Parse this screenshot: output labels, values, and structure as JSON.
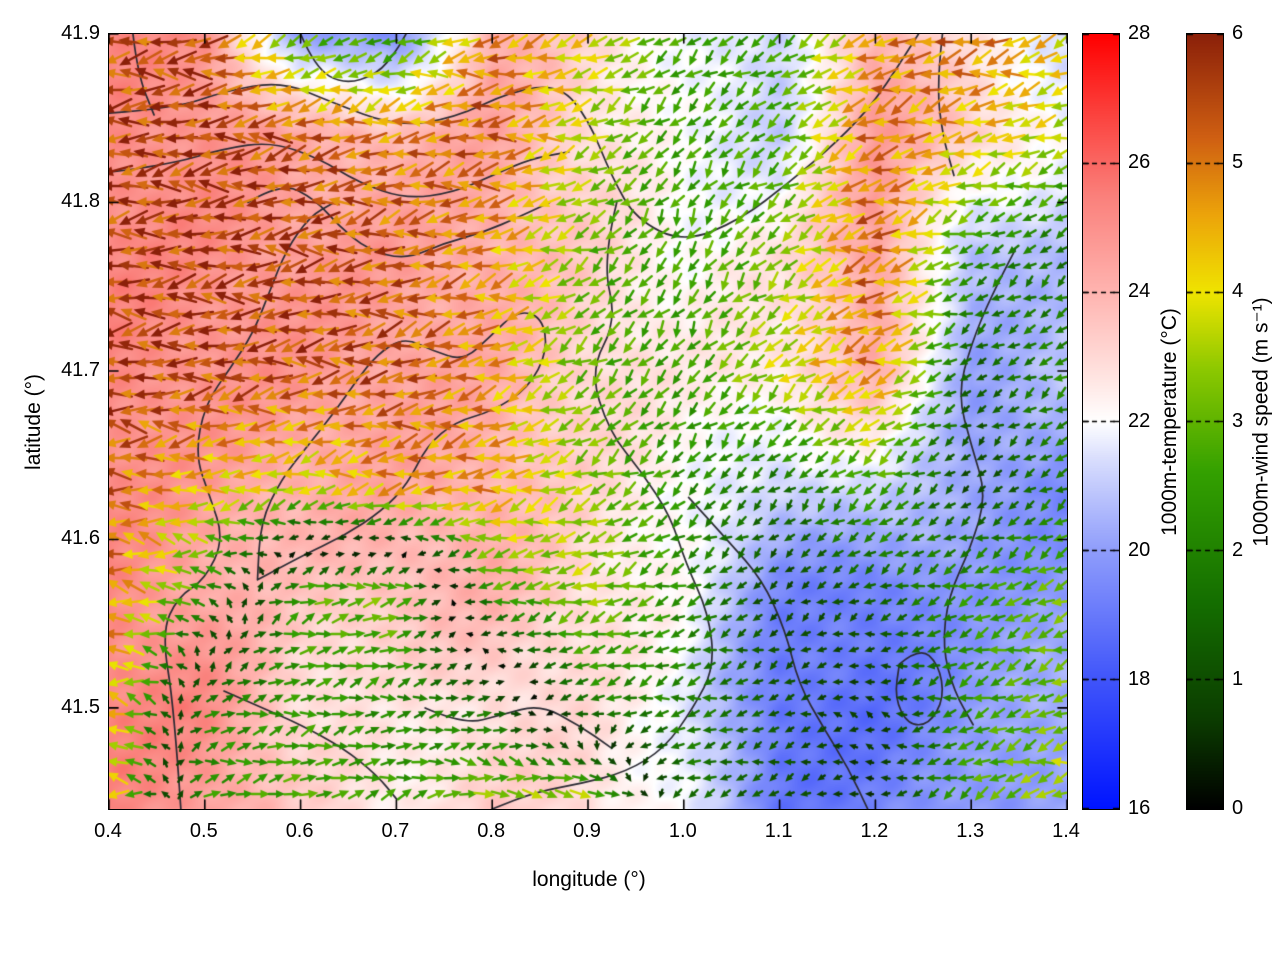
{
  "chart_data": {
    "type": "heatmap",
    "title": "",
    "xlabel": "longitude (°)",
    "ylabel": "latitude (°)",
    "xlim": [
      0.4,
      1.4
    ],
    "ylim": [
      41.44,
      41.9
    ],
    "grid": false,
    "xticks": {
      "values": [
        0.4,
        0.5,
        0.6,
        0.7,
        0.8,
        0.9,
        1.0,
        1.1,
        1.2,
        1.3,
        1.4
      ],
      "labels": [
        "0.4",
        "0.5",
        "0.6",
        "0.7",
        "0.8",
        "0.9",
        "1.0",
        "1.1",
        "1.2",
        "1.3",
        "1.4"
      ]
    },
    "yticks": {
      "values": [
        41.5,
        41.6,
        41.7,
        41.8,
        41.9
      ],
      "labels": [
        "41.5",
        "41.6",
        "41.7",
        "41.8",
        "41.9"
      ]
    },
    "colorbars": [
      {
        "id": "temperature",
        "label": "1000m-temperature (°C)",
        "range": [
          16,
          28
        ],
        "tick_values": [
          16,
          18,
          20,
          22,
          24,
          26,
          28
        ],
        "tick_labels": [
          "16",
          "18",
          "20",
          "22",
          "24",
          "26",
          "28"
        ],
        "colormap": [
          [
            16,
            "#0014ff"
          ],
          [
            18,
            "#4055fa"
          ],
          [
            20,
            "#8f9dfb"
          ],
          [
            21.4,
            "#d8ddfd"
          ],
          [
            22,
            "#ffffff"
          ],
          [
            22.7,
            "#ffe4e1"
          ],
          [
            24,
            "#ffb4b0"
          ],
          [
            25.5,
            "#fa807b"
          ],
          [
            26.8,
            "#fb403c"
          ],
          [
            28,
            "#ff0000"
          ]
        ]
      },
      {
        "id": "wind",
        "label": "1000m-wind speed (m s⁻¹)",
        "range": [
          0,
          6
        ],
        "tick_values": [
          0,
          1,
          2,
          3,
          4,
          5,
          6
        ],
        "tick_labels": [
          "0",
          "1",
          "2",
          "3",
          "4",
          "5",
          "6"
        ],
        "colormap": [
          [
            0,
            "#000000"
          ],
          [
            0.7,
            "#0b3d00"
          ],
          [
            1.6,
            "#146e00"
          ],
          [
            2.6,
            "#33a000"
          ],
          [
            3.4,
            "#8cc800"
          ],
          [
            4.0,
            "#efe400"
          ],
          [
            4.6,
            "#eca40a"
          ],
          [
            5.2,
            "#cf5f12"
          ],
          [
            6,
            "#8b2009"
          ]
        ]
      }
    ],
    "temperature_field": {
      "units": "°C",
      "lons": [
        0.4,
        0.5,
        0.6,
        0.7,
        0.8,
        0.9,
        1.0,
        1.1,
        1.2,
        1.3,
        1.4
      ],
      "lats": [
        41.9,
        41.84,
        41.77,
        41.7,
        41.63,
        41.57,
        41.5,
        41.44
      ],
      "values": [
        [
          25.2,
          25.0,
          20.0,
          19.5,
          24.3,
          23.0,
          22.0,
          21.0,
          24.2,
          22.5,
          21.5
        ],
        [
          25.2,
          25.0,
          24.3,
          24.0,
          24.4,
          23.0,
          21.8,
          21.2,
          24.6,
          23.5,
          21.8
        ],
        [
          25.3,
          25.1,
          24.8,
          24.6,
          24.3,
          23.2,
          22.2,
          22.6,
          24.8,
          20.5,
          20.8
        ],
        [
          25.3,
          25.0,
          24.8,
          24.6,
          24.2,
          23.2,
          22.4,
          22.8,
          24.0,
          20.2,
          20.8
        ],
        [
          25.2,
          24.6,
          24.2,
          24.3,
          24.2,
          23.0,
          22.2,
          21.0,
          21.5,
          20.0,
          19.5
        ],
        [
          25.2,
          24.4,
          23.4,
          23.8,
          24.0,
          23.0,
          22.0,
          19.5,
          19.0,
          20.0,
          19.8
        ],
        [
          25.4,
          25.2,
          23.0,
          22.4,
          23.0,
          22.8,
          21.8,
          18.8,
          18.8,
          19.8,
          20.5
        ],
        [
          25.3,
          24.8,
          23.2,
          22.6,
          23.2,
          23.0,
          21.8,
          19.0,
          19.2,
          20.0,
          20.2
        ]
      ]
    },
    "wind_field": {
      "units": "m s⁻¹",
      "lons": [
        0.4,
        0.5,
        0.6,
        0.7,
        0.8,
        0.9,
        1.0,
        1.1,
        1.2,
        1.3,
        1.4
      ],
      "lats": [
        41.9,
        41.84,
        41.77,
        41.7,
        41.63,
        41.57,
        41.5,
        41.44
      ],
      "u": [
        [
          -5.3,
          -5.6,
          -2.5,
          -2.0,
          -5.0,
          -3.8,
          -2.0,
          -2.2,
          -4.6,
          -5.0,
          -3.8
        ],
        [
          -5.5,
          -5.6,
          -5.2,
          -4.8,
          -5.2,
          -3.4,
          -1.6,
          -2.2,
          -4.8,
          -4.2,
          -3.4
        ],
        [
          -5.6,
          -5.6,
          -5.5,
          -5.2,
          -4.6,
          -2.6,
          -1.2,
          -2.4,
          -5.2,
          -2.0,
          -1.2
        ],
        [
          -5.6,
          -5.5,
          -5.3,
          -5.2,
          -4.6,
          -2.2,
          -1.6,
          -3.2,
          -4.6,
          -1.0,
          -2.0
        ],
        [
          -5.2,
          -4.2,
          -3.6,
          -4.6,
          -4.6,
          -3.0,
          -1.6,
          -1.2,
          -2.2,
          -0.6,
          -1.6
        ],
        [
          -5.0,
          -2.2,
          2.6,
          3.2,
          -2.6,
          -3.4,
          -2.0,
          -0.6,
          -1.2,
          -2.2,
          -2.8
        ],
        [
          -4.6,
          1.8,
          2.4,
          2.0,
          1.6,
          -1.8,
          -2.0,
          -1.0,
          -0.6,
          -2.2,
          -3.0
        ],
        [
          -4.2,
          2.4,
          2.8,
          2.6,
          3.5,
          4.2,
          -1.6,
          -1.0,
          -0.5,
          -2.6,
          -3.6
        ]
      ],
      "v": [
        [
          -0.5,
          -0.5,
          -1.2,
          -1.0,
          -0.6,
          -1.2,
          -1.6,
          -1.2,
          -1.0,
          -1.2,
          -1.6
        ],
        [
          -0.4,
          -0.5,
          -1.0,
          -1.0,
          -0.6,
          -1.2,
          -2.0,
          -1.6,
          -1.4,
          -1.0,
          -1.2
        ],
        [
          0.0,
          -0.4,
          -0.5,
          -0.6,
          -1.0,
          -1.6,
          -2.4,
          -2.0,
          -1.2,
          -1.0,
          -1.0
        ],
        [
          0.2,
          -0.4,
          -0.6,
          -1.0,
          -1.0,
          -2.0,
          -2.0,
          -2.0,
          -1.6,
          -0.6,
          -1.0
        ],
        [
          0.5,
          -0.5,
          -1.0,
          -1.0,
          -0.6,
          -1.6,
          -1.6,
          -1.0,
          -1.6,
          -0.5,
          -1.0
        ],
        [
          0.6,
          0.8,
          0.8,
          0.8,
          -0.5,
          -1.0,
          -1.0,
          -0.5,
          -0.6,
          -1.0,
          -1.4
        ],
        [
          0.8,
          0.8,
          0.5,
          0.5,
          0.5,
          -0.6,
          -0.5,
          -0.5,
          0.4,
          -1.0,
          -1.0
        ],
        [
          0.8,
          0.6,
          0.5,
          0.5,
          -0.8,
          -0.8,
          -0.4,
          -0.5,
          0.0,
          -1.0,
          -1.2
        ]
      ]
    },
    "contours": {
      "color": "#2b2b34",
      "paths": [
        [
          [
            0.4,
            41.853
          ],
          [
            0.47,
            41.856
          ],
          [
            0.52,
            41.866
          ],
          [
            0.58,
            41.872
          ],
          [
            0.63,
            41.86
          ],
          [
            0.7,
            41.845
          ],
          [
            0.76,
            41.85
          ],
          [
            0.82,
            41.866
          ],
          [
            0.87,
            41.87
          ],
          [
            0.9,
            41.85
          ],
          [
            0.925,
            41.815
          ],
          [
            0.95,
            41.79
          ],
          [
            1.0,
            41.776
          ],
          [
            1.06,
            41.79
          ],
          [
            1.11,
            41.812
          ],
          [
            1.16,
            41.836
          ],
          [
            1.2,
            41.86
          ],
          [
            1.245,
            41.9
          ]
        ],
        [
          [
            0.4,
            41.818
          ],
          [
            0.46,
            41.822
          ],
          [
            0.52,
            41.832
          ],
          [
            0.57,
            41.836
          ],
          [
            0.62,
            41.826
          ],
          [
            0.66,
            41.812
          ],
          [
            0.71,
            41.802
          ],
          [
            0.76,
            41.806
          ],
          [
            0.8,
            41.816
          ],
          [
            0.84,
            41.826
          ],
          [
            0.88,
            41.83
          ]
        ],
        [
          [
            0.545,
            41.8
          ],
          [
            0.58,
            41.812
          ],
          [
            0.615,
            41.802
          ],
          [
            0.64,
            41.786
          ],
          [
            0.67,
            41.772
          ],
          [
            0.71,
            41.766
          ],
          [
            0.75,
            41.776
          ],
          [
            0.79,
            41.782
          ],
          [
            0.83,
            41.792
          ],
          [
            0.86,
            41.8
          ]
        ],
        [
          [
            0.475,
            41.44
          ],
          [
            0.468,
            41.5
          ],
          [
            0.455,
            41.545
          ],
          [
            0.472,
            41.566
          ],
          [
            0.5,
            41.576
          ],
          [
            0.52,
            41.6
          ],
          [
            0.505,
            41.626
          ],
          [
            0.49,
            41.65
          ],
          [
            0.5,
            41.68
          ],
          [
            0.527,
            41.702
          ],
          [
            0.55,
            41.722
          ],
          [
            0.567,
            41.746
          ],
          [
            0.585,
            41.772
          ],
          [
            0.61,
            41.792
          ],
          [
            0.635,
            41.8
          ]
        ],
        [
          [
            0.555,
            41.576
          ],
          [
            0.6,
            41.59
          ],
          [
            0.645,
            41.602
          ],
          [
            0.685,
            41.617
          ],
          [
            0.712,
            41.633
          ],
          [
            0.732,
            41.656
          ],
          [
            0.762,
            41.67
          ],
          [
            0.8,
            41.676
          ],
          [
            0.838,
            41.69
          ],
          [
            0.858,
            41.712
          ],
          [
            0.852,
            41.732
          ],
          [
            0.826,
            41.736
          ],
          [
            0.797,
            41.72
          ],
          [
            0.77,
            41.706
          ],
          [
            0.738,
            41.712
          ],
          [
            0.708,
            41.72
          ],
          [
            0.68,
            41.71
          ],
          [
            0.658,
            41.694
          ],
          [
            0.636,
            41.676
          ],
          [
            0.608,
            41.656
          ],
          [
            0.58,
            41.636
          ],
          [
            0.558,
            41.61
          ],
          [
            0.555,
            41.576
          ]
        ],
        [
          [
            0.93,
            41.8
          ],
          [
            0.915,
            41.765
          ],
          [
            0.93,
            41.73
          ],
          [
            0.902,
            41.7
          ],
          [
            0.922,
            41.664
          ],
          [
            0.956,
            41.64
          ],
          [
            0.986,
            41.614
          ],
          [
            1.002,
            41.586
          ],
          [
            1.026,
            41.556
          ],
          [
            1.032,
            41.524
          ],
          [
            1.01,
            41.5
          ],
          [
            0.98,
            41.476
          ],
          [
            0.94,
            41.462
          ],
          [
            0.892,
            41.455
          ],
          [
            0.845,
            41.45
          ],
          [
            0.8,
            41.44
          ]
        ],
        [
          [
            1.005,
            41.625
          ],
          [
            1.045,
            41.6
          ],
          [
            1.082,
            41.576
          ],
          [
            1.106,
            41.546
          ],
          [
            1.12,
            41.514
          ],
          [
            1.146,
            41.488
          ],
          [
            1.172,
            41.464
          ],
          [
            1.192,
            41.44
          ]
        ],
        [
          [
            1.346,
            41.772
          ],
          [
            1.322,
            41.746
          ],
          [
            1.3,
            41.716
          ],
          [
            1.286,
            41.686
          ],
          [
            1.3,
            41.656
          ],
          [
            1.316,
            41.626
          ],
          [
            1.3,
            41.596
          ],
          [
            1.276,
            41.566
          ],
          [
            1.27,
            41.536
          ],
          [
            1.282,
            41.51
          ],
          [
            1.302,
            41.49
          ]
        ],
        [
          [
            1.225,
            41.526
          ],
          [
            1.246,
            41.536
          ],
          [
            1.266,
            41.526
          ],
          [
            1.272,
            41.506
          ],
          [
            1.256,
            41.49
          ],
          [
            1.234,
            41.49
          ],
          [
            1.22,
            41.506
          ],
          [
            1.225,
            41.526
          ]
        ],
        [
          [
            0.52,
            41.51
          ],
          [
            0.56,
            41.5
          ],
          [
            0.6,
            41.49
          ],
          [
            0.645,
            41.476
          ],
          [
            0.68,
            41.46
          ],
          [
            0.7,
            41.446
          ]
        ],
        [
          [
            0.73,
            41.5
          ],
          [
            0.77,
            41.49
          ],
          [
            0.81,
            41.496
          ],
          [
            0.85,
            41.502
          ],
          [
            0.89,
            41.49
          ],
          [
            0.925,
            41.476
          ]
        ],
        [
          [
            1.27,
            41.9
          ],
          [
            1.264,
            41.87
          ],
          [
            1.27,
            41.84
          ],
          [
            1.282,
            41.816
          ]
        ],
        [
          [
            0.6,
            41.9
          ],
          [
            0.615,
            41.88
          ],
          [
            0.645,
            41.87
          ],
          [
            0.68,
            41.876
          ],
          [
            0.7,
            41.89
          ],
          [
            0.71,
            41.9
          ]
        ],
        [
          [
            0.425,
            41.9
          ],
          [
            0.43,
            41.876
          ],
          [
            0.447,
            41.852
          ]
        ]
      ]
    }
  }
}
